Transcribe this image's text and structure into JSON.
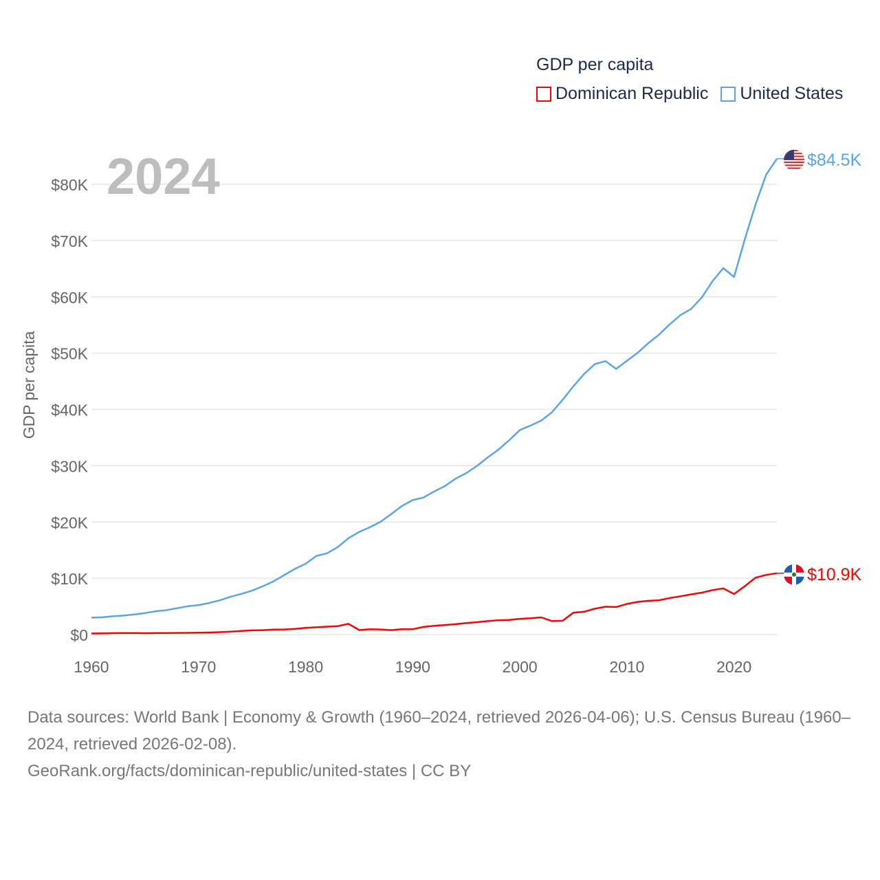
{
  "legend": {
    "title": "GDP per capita",
    "items": [
      {
        "label": "Dominican Republic",
        "color": "#ff0000"
      },
      {
        "label": "United States",
        "color": "#5aa5ea"
      }
    ]
  },
  "year_watermark": "2024",
  "source": {
    "line1": "Data sources: World Bank | Economy & Growth (1960–2024, retrieved 2026-04-06); U.S. Census Bureau (1960–2024, retrieved 2026-02-08).",
    "line2": "GeoRank.org/facts/dominican-republic/united-states | CC BY"
  },
  "chart_data": {
    "type": "line",
    "title": "GDP per capita",
    "xlabel": "",
    "ylabel": "GDP per capita",
    "xlim": [
      1960,
      2024
    ],
    "ylim": [
      0,
      85000
    ],
    "grid": true,
    "legend_position": "top-right",
    "x_ticks": [
      1960,
      1970,
      1980,
      1990,
      2000,
      2010,
      2020
    ],
    "x_tick_labels": [
      "1960",
      "1970",
      "1980",
      "1990",
      "2000",
      "2010",
      "2020"
    ],
    "y_ticks": [
      0,
      10000,
      20000,
      30000,
      40000,
      50000,
      60000,
      70000,
      80000
    ],
    "y_tick_labels": [
      "$0",
      "$10K",
      "$20K",
      "$30K",
      "$40K",
      "$50K",
      "$60K",
      "$70K",
      "$80K"
    ],
    "x_start": 1960,
    "series": [
      {
        "name": "United States",
        "color": "#5aa5ea",
        "end_label": "$84.5K",
        "flag": "us-flag",
        "values": [
          3007,
          3067,
          3244,
          3375,
          3574,
          3828,
          4146,
          4336,
          4696,
          5032,
          5234,
          5609,
          6094,
          6726,
          7226,
          7801,
          8592,
          9453,
          10565,
          11674,
          12575,
          13976,
          14434,
          15544,
          17121,
          18237,
          19071,
          20039,
          21417,
          22857,
          23889,
          24342,
          25419,
          26387,
          27695,
          28691,
          29968,
          31459,
          32854,
          34515,
          36330,
          37134,
          38023,
          39496,
          41713,
          44115,
          46299,
          48050,
          48570,
          47195,
          48651,
          50066,
          51784,
          53291,
          55124,
          56763,
          57867,
          59915,
          62805,
          65095,
          63528,
          70219,
          76330,
          81695,
          84534
        ]
      },
      {
        "name": "Dominican Republic",
        "color": "#ff0000",
        "end_label": "$10.9K",
        "flag": "do-flag",
        "values": [
          200,
          210,
          260,
          280,
          280,
          250,
          270,
          280,
          290,
          310,
          340,
          370,
          430,
          510,
          630,
          740,
          780,
          880,
          900,
          1000,
          1200,
          1300,
          1400,
          1500,
          1900,
          800,
          950,
          900,
          800,
          950,
          950,
          1350,
          1550,
          1700,
          1850,
          2050,
          2200,
          2400,
          2550,
          2600,
          2800,
          2900,
          3050,
          2400,
          2450,
          3900,
          4050,
          4600,
          4950,
          4900,
          5450,
          5800,
          6000,
          6100,
          6500,
          6800,
          7150,
          7450,
          7900,
          8200,
          7200,
          8600,
          10100,
          10600,
          10900
        ]
      }
    ]
  }
}
